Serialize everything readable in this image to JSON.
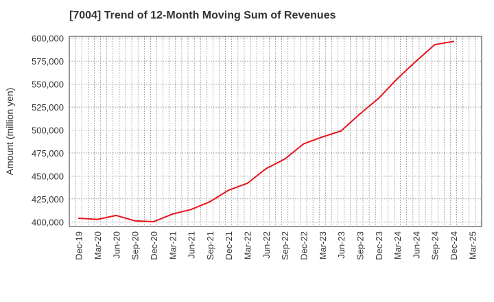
{
  "chart_data": {
    "type": "line",
    "title": "[7004]  Trend of 12-Month Moving Sum of Revenues",
    "xlabel": "",
    "ylabel": "Amount (million yen)",
    "ylim": [
      395000,
      602000
    ],
    "yticks": [
      400000,
      425000,
      450000,
      475000,
      500000,
      525000,
      550000,
      575000,
      600000
    ],
    "ytick_labels": [
      "400,000",
      "425,000",
      "450,000",
      "475,000",
      "500,000",
      "525,000",
      "550,000",
      "575,000",
      "600,000"
    ],
    "categories": [
      "Dec-19",
      "Mar-20",
      "Jun-20",
      "Sep-20",
      "Dec-20",
      "Mar-21",
      "Jun-21",
      "Sep-21",
      "Dec-21",
      "Mar-22",
      "Jun-22",
      "Sep-22",
      "Dec-22",
      "Mar-23",
      "Jun-23",
      "Sep-23",
      "Dec-23",
      "Mar-24",
      "Jun-24",
      "Sep-24",
      "Dec-24",
      "Mar-25"
    ],
    "grid": true,
    "series": [
      {
        "color": "#e8141b",
        "values": [
          404000,
          402800,
          407000,
          401200,
          400200,
          408500,
          413500,
          422000,
          434500,
          442000,
          458000,
          468500,
          485000,
          492500,
          499000,
          517500,
          534500,
          556000,
          575000,
          593000,
          596500,
          null
        ]
      }
    ]
  }
}
